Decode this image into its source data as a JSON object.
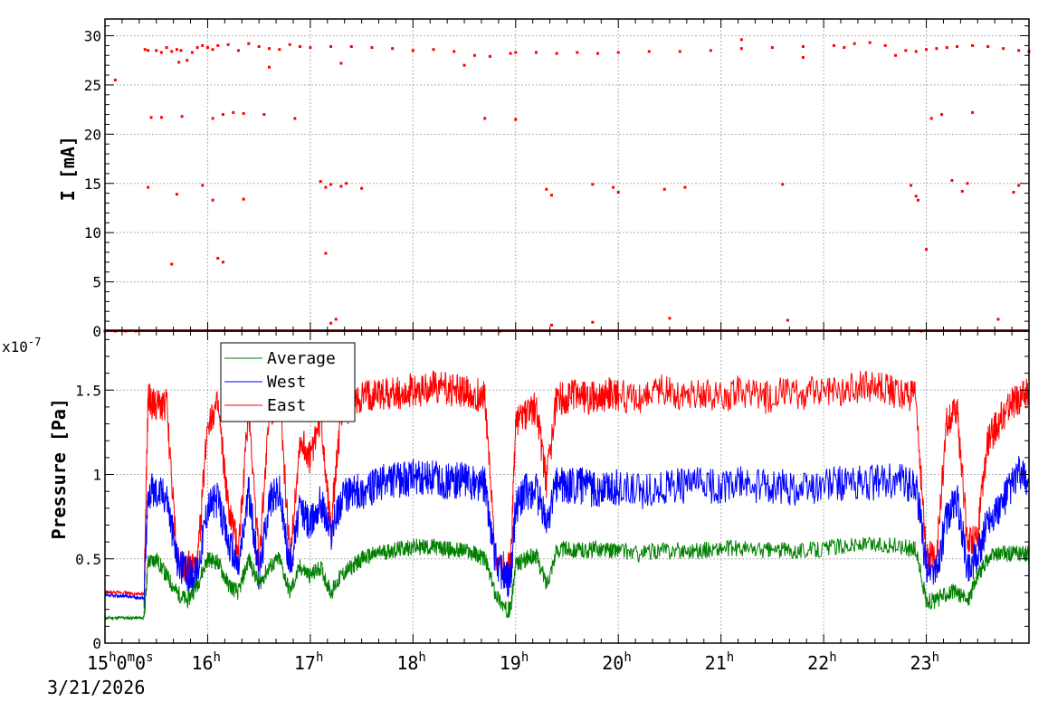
{
  "chart_data": [
    {
      "type": "scatter",
      "ylabel": "I [mA]",
      "xlim": [
        15,
        24
      ],
      "ylim": [
        0,
        31.7
      ],
      "y_ticks": [
        0,
        5,
        10,
        15,
        20,
        25,
        30
      ],
      "y_tick_labels": [
        "0",
        "5",
        "10",
        "15",
        "20",
        "25",
        "30"
      ],
      "grid": true,
      "color": "#ff0000",
      "series": [
        {
          "x": [
            15.0,
            15.1,
            15.2,
            15.3,
            15.39,
            15.42,
            15.5,
            15.55,
            15.6,
            15.65,
            15.7,
            15.72,
            15.74,
            15.8,
            15.85,
            15.9,
            15.95,
            16.0,
            16.05,
            16.1,
            16.2,
            16.3,
            16.4,
            16.5,
            16.6,
            16.7,
            16.8,
            16.9,
            17.0,
            17.2,
            17.4,
            17.6,
            17.8,
            18.0,
            18.2,
            18.4,
            18.6,
            18.75,
            18.85,
            18.95,
            19.0,
            19.2,
            19.4,
            19.6,
            19.8,
            20.0,
            20.3,
            20.6,
            20.9,
            21.2,
            21.5,
            21.8,
            22.1,
            22.3,
            22.45,
            22.6,
            22.8,
            22.9,
            22.95,
            23.0,
            23.1,
            23.2,
            23.3,
            23.45,
            23.6,
            23.75,
            23.9,
            24.0,
            15.45,
            15.55,
            15.75,
            16.05,
            16.15,
            16.25,
            16.35,
            16.55,
            16.85,
            18.7,
            19.0,
            23.05,
            23.15,
            23.45,
            15.42,
            15.7,
            15.95,
            16.05,
            16.35,
            17.1,
            17.15,
            17.2,
            17.3,
            17.35,
            17.5,
            19.3,
            19.35,
            19.75,
            19.95,
            20.0,
            20.45,
            20.65,
            21.6,
            22.85,
            22.9,
            22.92,
            23.25,
            23.35,
            23.4,
            23.85,
            23.9,
            15.65,
            16.1,
            16.15,
            17.15,
            17.2,
            17.25,
            15.1,
            16.6,
            17.3,
            18.5,
            19.35,
            19.75,
            20.5,
            21.2,
            21.65,
            21.8,
            22.2,
            22.7,
            23.0,
            23.7,
            24.0
          ],
          "values": [
            0,
            0,
            0,
            0,
            28.6,
            28.5,
            28.5,
            28.3,
            28.8,
            28.4,
            28.6,
            27.3,
            28.5,
            27.5,
            28.3,
            28.8,
            29.0,
            28.8,
            28.6,
            29.0,
            29.1,
            28.5,
            29.2,
            28.9,
            28.7,
            28.6,
            29.1,
            28.9,
            28.8,
            28.9,
            28.9,
            28.8,
            28.7,
            28.5,
            28.6,
            28.4,
            28.0,
            27.9,
            0,
            28.2,
            28.3,
            28.3,
            28.2,
            28.3,
            28.2,
            28.3,
            28.4,
            28.4,
            28.5,
            28.7,
            28.8,
            28.9,
            29.0,
            29.2,
            29.3,
            29.0,
            28.5,
            28.4,
            0,
            28.6,
            28.7,
            28.8,
            28.9,
            29.0,
            28.9,
            28.7,
            28.5,
            28.4,
            21.7,
            21.7,
            21.8,
            21.6,
            22.0,
            22.2,
            22.1,
            22.0,
            21.6,
            21.6,
            21.5,
            21.6,
            22.0,
            22.2,
            14.6,
            13.9,
            14.8,
            13.3,
            13.4,
            15.2,
            14.6,
            14.9,
            14.7,
            15.0,
            14.5,
            14.4,
            13.8,
            14.9,
            14.6,
            14.1,
            14.4,
            14.6,
            14.9,
            14.8,
            13.7,
            13.3,
            15.3,
            14.2,
            15.0,
            14.1,
            14.8,
            6.8,
            7.4,
            7.0,
            7.9,
            0.8,
            1.2,
            25.5,
            26.8,
            27.2,
            27.0,
            0.6,
            0.9,
            1.3,
            29.6,
            1.1,
            27.8,
            28.8,
            28.0,
            8.3,
            1.2,
            28.4
          ]
        }
      ]
    },
    {
      "type": "line",
      "ylabel": "Pressure [Pa]",
      "y_multiplier": "x10",
      "y_multiplier_exponent": "-7",
      "xlim": [
        15,
        24
      ],
      "ylim": [
        0,
        1.85
      ],
      "y_ticks": [
        0,
        0.5,
        1,
        1.5
      ],
      "y_tick_labels": [
        "0",
        "0.5",
        "1",
        "1.5"
      ],
      "grid": true,
      "legend_position": "top-left",
      "x_ticks": [
        15,
        16,
        17,
        18,
        19,
        20,
        21,
        22,
        23
      ],
      "x_tick_labels": [
        {
          "num": "15",
          "sup1": "h",
          "mid": "0",
          "sup2": "m",
          "mid2": "0",
          "sup3": "s"
        },
        {
          "num": "16",
          "sup1": "h"
        },
        {
          "num": "17",
          "sup1": "h"
        },
        {
          "num": "18",
          "sup1": "h"
        },
        {
          "num": "19",
          "sup1": "h"
        },
        {
          "num": "20",
          "sup1": "h"
        },
        {
          "num": "21",
          "sup1": "h"
        },
        {
          "num": "22",
          "sup1": "h"
        },
        {
          "num": "23",
          "sup1": "h"
        }
      ],
      "date_label": "3/21/2026",
      "x": [
        15.0,
        15.1,
        15.2,
        15.3,
        15.38,
        15.42,
        15.5,
        15.6,
        15.7,
        15.8,
        15.9,
        16.0,
        16.1,
        16.2,
        16.3,
        16.4,
        16.5,
        16.6,
        16.7,
        16.8,
        16.9,
        17.0,
        17.1,
        17.2,
        17.3,
        17.4,
        17.5,
        17.6,
        17.7,
        17.8,
        17.9,
        18.0,
        18.1,
        18.2,
        18.3,
        18.4,
        18.5,
        18.6,
        18.7,
        18.8,
        18.9,
        18.95,
        19.0,
        19.1,
        19.2,
        19.3,
        19.4,
        19.5,
        19.6,
        19.7,
        19.8,
        19.9,
        20.0,
        20.2,
        20.4,
        20.6,
        20.8,
        21.0,
        21.2,
        21.4,
        21.6,
        21.8,
        22.0,
        22.2,
        22.4,
        22.6,
        22.8,
        22.9,
        23.0,
        23.1,
        23.2,
        23.3,
        23.4,
        23.5,
        23.6,
        23.7,
        23.8,
        23.9,
        24.0
      ],
      "series": [
        {
          "name": "Average",
          "color": "#008000",
          "values": [
            0.15,
            0.15,
            0.15,
            0.15,
            0.15,
            0.48,
            0.5,
            0.4,
            0.3,
            0.25,
            0.35,
            0.5,
            0.48,
            0.35,
            0.3,
            0.5,
            0.35,
            0.45,
            0.5,
            0.3,
            0.45,
            0.4,
            0.45,
            0.3,
            0.4,
            0.45,
            0.5,
            0.52,
            0.54,
            0.55,
            0.56,
            0.57,
            0.57,
            0.57,
            0.56,
            0.55,
            0.55,
            0.53,
            0.5,
            0.3,
            0.2,
            0.2,
            0.46,
            0.5,
            0.52,
            0.35,
            0.55,
            0.56,
            0.55,
            0.55,
            0.56,
            0.55,
            0.55,
            0.53,
            0.55,
            0.55,
            0.55,
            0.56,
            0.56,
            0.55,
            0.55,
            0.55,
            0.56,
            0.58,
            0.58,
            0.58,
            0.57,
            0.55,
            0.25,
            0.25,
            0.3,
            0.3,
            0.25,
            0.4,
            0.5,
            0.53,
            0.53,
            0.53,
            0.53
          ]
        },
        {
          "name": "West",
          "color": "#0000ff",
          "values": [
            0.28,
            0.28,
            0.28,
            0.27,
            0.27,
            0.9,
            0.9,
            0.88,
            0.5,
            0.4,
            0.42,
            0.82,
            0.85,
            0.6,
            0.45,
            0.9,
            0.4,
            0.85,
            0.9,
            0.45,
            0.8,
            0.7,
            0.85,
            0.65,
            0.85,
            0.9,
            0.9,
            0.92,
            0.95,
            0.97,
            0.97,
            0.98,
            0.97,
            0.98,
            0.96,
            0.96,
            0.97,
            0.95,
            0.94,
            0.5,
            0.38,
            0.38,
            0.8,
            0.9,
            0.9,
            0.7,
            0.95,
            0.92,
            0.94,
            0.92,
            0.9,
            0.93,
            0.92,
            0.9,
            0.92,
            0.93,
            0.94,
            0.93,
            0.94,
            0.92,
            0.93,
            0.92,
            0.94,
            0.95,
            0.94,
            0.96,
            0.95,
            0.94,
            0.45,
            0.42,
            0.75,
            0.85,
            0.45,
            0.5,
            0.75,
            0.78,
            0.9,
            1.0,
            0.95
          ]
        },
        {
          "name": "East",
          "color": "#ff0000",
          "values": [
            0.3,
            0.3,
            0.3,
            0.29,
            0.29,
            1.45,
            1.4,
            1.42,
            0.5,
            0.45,
            0.45,
            1.32,
            1.4,
            0.8,
            0.55,
            1.4,
            0.5,
            1.35,
            1.5,
            0.5,
            1.2,
            1.1,
            1.35,
            0.7,
            1.35,
            1.4,
            1.45,
            1.47,
            1.48,
            1.48,
            1.48,
            1.5,
            1.5,
            1.52,
            1.51,
            1.5,
            1.49,
            1.47,
            1.48,
            0.5,
            0.45,
            0.45,
            1.3,
            1.35,
            1.4,
            0.95,
            1.45,
            1.45,
            1.48,
            1.45,
            1.45,
            1.48,
            1.47,
            1.45,
            1.5,
            1.47,
            1.48,
            1.46,
            1.5,
            1.45,
            1.48,
            1.47,
            1.5,
            1.5,
            1.52,
            1.5,
            1.48,
            1.45,
            0.5,
            0.52,
            1.3,
            1.38,
            0.6,
            0.65,
            1.2,
            1.3,
            1.4,
            1.45,
            1.48
          ]
        }
      ]
    }
  ]
}
